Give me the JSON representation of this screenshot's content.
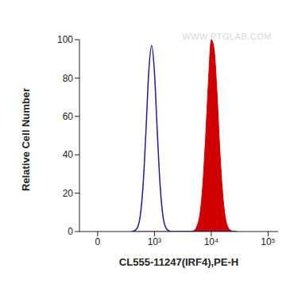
{
  "chart_data": {
    "type": "area",
    "x_label": "CL555-11247(IRF4),PE-H",
    "y_label": "Relative Cell Number",
    "annotations": [
      "WWW.PTGLAB.COM"
    ],
    "x": [
      398,
      447,
      501,
      562,
      631,
      708,
      794,
      891,
      1000,
      1122,
      1259,
      1413,
      1585,
      1778,
      1995,
      2239,
      2512,
      2818,
      3162,
      3548,
      3981,
      4467,
      5012,
      5623,
      6310,
      7079,
      7943,
      8913,
      10000,
      11220,
      12589,
      14125,
      15849,
      17783,
      19953,
      22387,
      25119,
      28184
    ],
    "series": [
      {
        "type": "line",
        "color": "#1c1c9c",
        "values": [
          0,
          0.4,
          2,
          8,
          24,
          52,
          83,
          97,
          83,
          52,
          24,
          8,
          2,
          0.4,
          0,
          0,
          0,
          0,
          0,
          0,
          0,
          0,
          0,
          0,
          0,
          0,
          0,
          0,
          0,
          0,
          0,
          0,
          0,
          0,
          0,
          0,
          0,
          0
        ]
      },
      {
        "type": "area",
        "color": "#d00000",
        "values": [
          0,
          0,
          0,
          0,
          0,
          0,
          0,
          0,
          0,
          0,
          0,
          0,
          0,
          0,
          0,
          0,
          0,
          0,
          0,
          0,
          0,
          0.1,
          0.6,
          3,
          9,
          24,
          49,
          78,
          100,
          95,
          73,
          43,
          20,
          7,
          2,
          0.5,
          0,
          0
        ]
      }
    ],
    "xlim": [
      -200,
      150000
    ],
    "xticks": [
      0,
      {
        "value": 1000,
        "label": "10³"
      },
      {
        "value": 10000,
        "label": "10⁴"
      },
      {
        "value": 100000,
        "label": "10⁵"
      }
    ],
    "ylim": [
      0,
      100
    ],
    "yticks": [
      0,
      20,
      40,
      60,
      80,
      100
    ],
    "grid": false
  }
}
